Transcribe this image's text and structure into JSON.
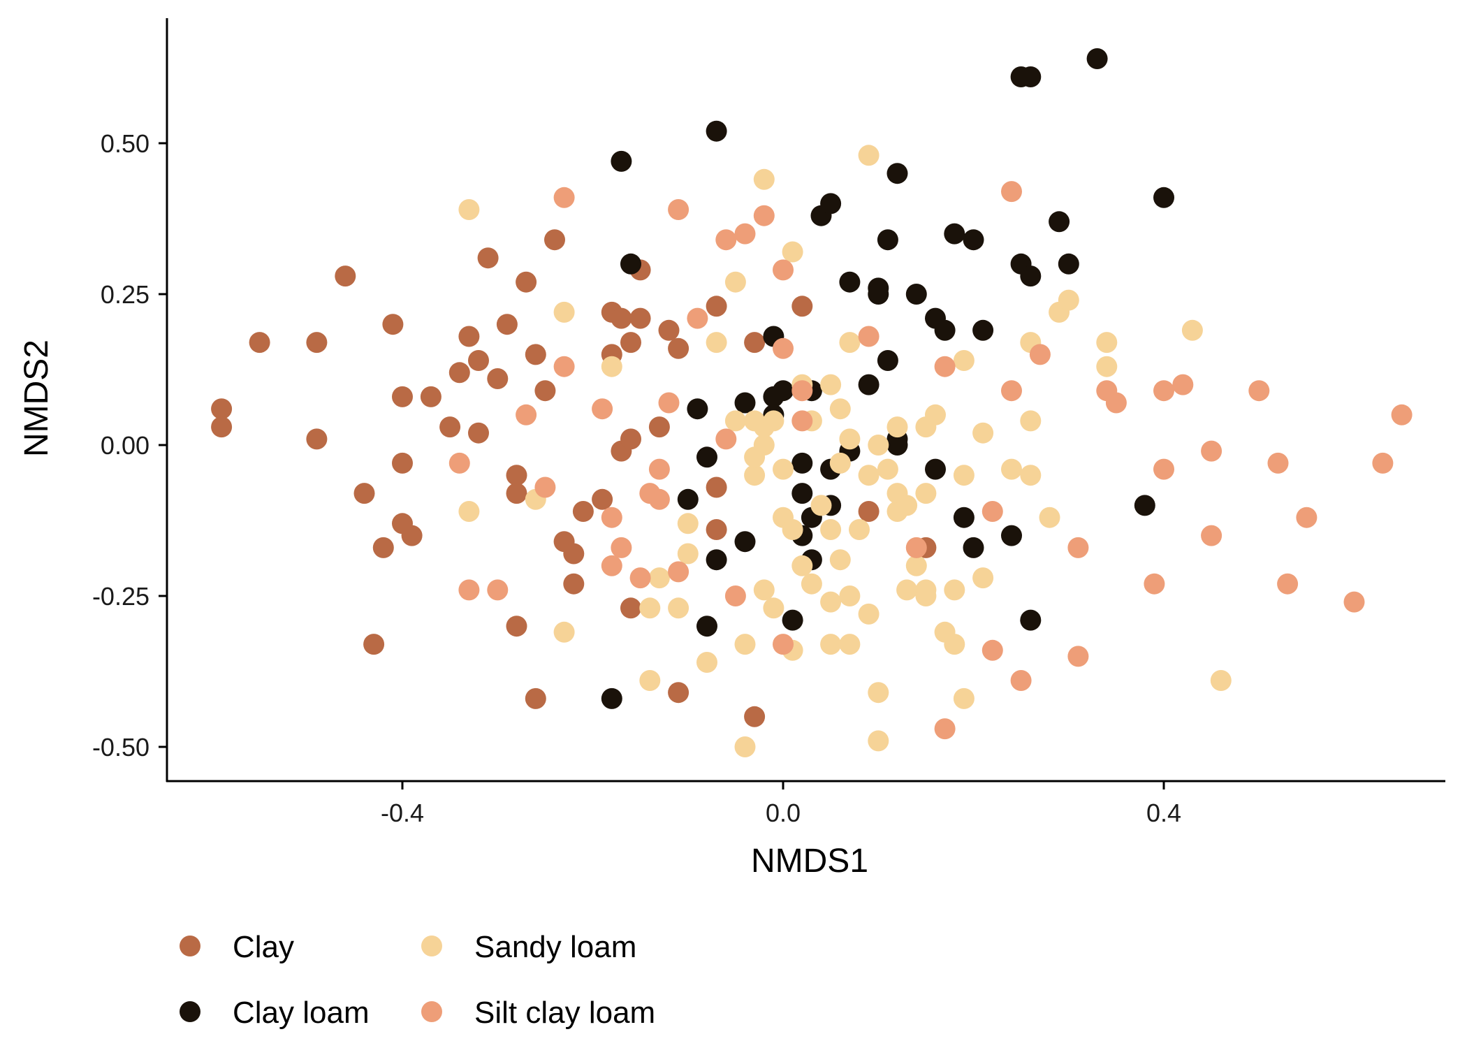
{
  "chart_data": {
    "type": "scatter",
    "xlabel": "NMDS1",
    "ylabel": "NMDS2",
    "xlim": [
      -0.65,
      0.73
    ],
    "ylim": [
      -0.56,
      0.69
    ],
    "x_ticks": [
      -0.4,
      0.0,
      0.4
    ],
    "x_tick_labels": [
      "-0.4",
      "0.0",
      "0.4"
    ],
    "y_ticks": [
      -0.5,
      -0.25,
      0.0,
      0.25,
      0.5
    ],
    "y_tick_labels": [
      "-0.50",
      "-0.25",
      "0.00",
      "0.25",
      "0.50"
    ],
    "grid": false,
    "legend_position": "bottom-left",
    "series": [
      {
        "name": "Clay",
        "color": "#B96A45",
        "points": [
          [
            -0.59,
            0.06
          ],
          [
            -0.59,
            0.03
          ],
          [
            -0.55,
            0.17
          ],
          [
            -0.49,
            0.17
          ],
          [
            -0.49,
            0.01
          ],
          [
            -0.46,
            0.28
          ],
          [
            -0.44,
            -0.08
          ],
          [
            -0.43,
            -0.33
          ],
          [
            -0.42,
            -0.17
          ],
          [
            -0.41,
            0.2
          ],
          [
            -0.4,
            0.08
          ],
          [
            -0.4,
            -0.03
          ],
          [
            -0.4,
            -0.13
          ],
          [
            -0.39,
            -0.15
          ],
          [
            -0.37,
            0.08
          ],
          [
            -0.35,
            0.03
          ],
          [
            -0.34,
            0.12
          ],
          [
            -0.33,
            0.18
          ],
          [
            -0.32,
            0.14
          ],
          [
            -0.32,
            0.02
          ],
          [
            -0.31,
            0.31
          ],
          [
            -0.3,
            0.11
          ],
          [
            -0.29,
            0.2
          ],
          [
            -0.28,
            -0.08
          ],
          [
            -0.28,
            -0.05
          ],
          [
            -0.28,
            -0.3
          ],
          [
            -0.27,
            0.27
          ],
          [
            -0.26,
            0.15
          ],
          [
            -0.26,
            -0.42
          ],
          [
            -0.25,
            0.09
          ],
          [
            -0.24,
            0.34
          ],
          [
            -0.23,
            -0.16
          ],
          [
            -0.22,
            -0.18
          ],
          [
            -0.22,
            -0.23
          ],
          [
            -0.21,
            -0.11
          ],
          [
            -0.19,
            -0.09
          ],
          [
            -0.18,
            0.15
          ],
          [
            -0.18,
            0.22
          ],
          [
            -0.17,
            0.21
          ],
          [
            -0.17,
            -0.01
          ],
          [
            -0.16,
            0.01
          ],
          [
            -0.16,
            0.17
          ],
          [
            -0.15,
            0.21
          ],
          [
            -0.15,
            0.29
          ],
          [
            -0.16,
            -0.27
          ],
          [
            -0.13,
            0.03
          ],
          [
            -0.12,
            0.19
          ],
          [
            -0.11,
            0.16
          ],
          [
            -0.11,
            -0.41
          ],
          [
            -0.07,
            0.23
          ],
          [
            -0.07,
            -0.07
          ],
          [
            -0.07,
            -0.14
          ],
          [
            -0.03,
            0.17
          ],
          [
            -0.03,
            -0.45
          ],
          [
            0.02,
            0.23
          ],
          [
            0.09,
            -0.11
          ],
          [
            0.15,
            -0.17
          ]
        ]
      },
      {
        "name": "Clay loam",
        "color": "#1A120A",
        "points": [
          [
            -0.17,
            0.47
          ],
          [
            -0.16,
            0.3
          ],
          [
            -0.18,
            -0.42
          ],
          [
            -0.1,
            -0.09
          ],
          [
            -0.09,
            0.06
          ],
          [
            -0.08,
            -0.02
          ],
          [
            -0.08,
            -0.3
          ],
          [
            -0.07,
            0.52
          ],
          [
            -0.07,
            -0.19
          ],
          [
            -0.04,
            -0.16
          ],
          [
            -0.04,
            0.07
          ],
          [
            -0.01,
            0.08
          ],
          [
            -0.01,
            0.18
          ],
          [
            -0.01,
            0.05
          ],
          [
            0.0,
            0.09
          ],
          [
            0.02,
            -0.03
          ],
          [
            0.02,
            -0.08
          ],
          [
            0.02,
            -0.15
          ],
          [
            0.03,
            -0.12
          ],
          [
            0.03,
            -0.19
          ],
          [
            0.01,
            -0.29
          ],
          [
            0.03,
            0.09
          ],
          [
            0.04,
            0.38
          ],
          [
            0.05,
            0.4
          ],
          [
            0.05,
            -0.04
          ],
          [
            0.05,
            -0.1
          ],
          [
            0.07,
            0.27
          ],
          [
            0.07,
            -0.01
          ],
          [
            0.09,
            0.1
          ],
          [
            0.1,
            0.26
          ],
          [
            0.1,
            0.25
          ],
          [
            0.11,
            0.34
          ],
          [
            0.11,
            0.14
          ],
          [
            0.12,
            0.45
          ],
          [
            0.12,
            0.01
          ],
          [
            0.12,
            0.0
          ],
          [
            0.14,
            0.25
          ],
          [
            0.16,
            0.21
          ],
          [
            0.16,
            -0.04
          ],
          [
            0.17,
            0.19
          ],
          [
            0.18,
            0.35
          ],
          [
            0.19,
            -0.12
          ],
          [
            0.2,
            0.34
          ],
          [
            0.2,
            -0.17
          ],
          [
            0.21,
            0.19
          ],
          [
            0.24,
            -0.15
          ],
          [
            0.25,
            0.3
          ],
          [
            0.25,
            0.61
          ],
          [
            0.26,
            0.61
          ],
          [
            0.26,
            0.28
          ],
          [
            0.26,
            -0.29
          ],
          [
            0.29,
            0.37
          ],
          [
            0.3,
            0.3
          ],
          [
            0.33,
            0.64
          ],
          [
            0.38,
            -0.1
          ],
          [
            0.4,
            0.41
          ]
        ]
      },
      {
        "name": "Sandy loam",
        "color": "#F6D397",
        "points": [
          [
            -0.33,
            0.39
          ],
          [
            -0.33,
            -0.11
          ],
          [
            -0.26,
            -0.09
          ],
          [
            -0.23,
            0.22
          ],
          [
            -0.23,
            -0.31
          ],
          [
            -0.18,
            0.13
          ],
          [
            -0.14,
            -0.27
          ],
          [
            -0.14,
            -0.39
          ],
          [
            -0.13,
            -0.22
          ],
          [
            -0.11,
            -0.27
          ],
          [
            -0.1,
            -0.13
          ],
          [
            -0.1,
            -0.18
          ],
          [
            -0.08,
            -0.36
          ],
          [
            -0.07,
            0.17
          ],
          [
            -0.05,
            0.04
          ],
          [
            -0.05,
            0.27
          ],
          [
            -0.04,
            -0.33
          ],
          [
            -0.03,
            -0.05
          ],
          [
            -0.03,
            0.04
          ],
          [
            -0.03,
            -0.02
          ],
          [
            -0.02,
            0.03
          ],
          [
            -0.02,
            0.0
          ],
          [
            -0.02,
            -0.24
          ],
          [
            -0.01,
            -0.27
          ],
          [
            -0.02,
            0.44
          ],
          [
            0.0,
            -0.04
          ],
          [
            0.0,
            -0.12
          ],
          [
            0.01,
            0.32
          ],
          [
            0.01,
            -0.14
          ],
          [
            0.01,
            -0.34
          ],
          [
            0.02,
            0.1
          ],
          [
            0.02,
            -0.2
          ],
          [
            0.03,
            0.04
          ],
          [
            0.03,
            -0.23
          ],
          [
            0.04,
            -0.1
          ],
          [
            0.05,
            0.1
          ],
          [
            0.05,
            -0.14
          ],
          [
            0.05,
            -0.33
          ],
          [
            0.05,
            -0.26
          ],
          [
            0.06,
            0.06
          ],
          [
            0.06,
            -0.19
          ],
          [
            0.06,
            -0.03
          ],
          [
            0.07,
            0.01
          ],
          [
            0.07,
            0.17
          ],
          [
            0.07,
            -0.25
          ],
          [
            0.07,
            -0.33
          ],
          [
            0.08,
            -0.14
          ],
          [
            0.09,
            -0.05
          ],
          [
            0.09,
            0.48
          ],
          [
            0.09,
            -0.28
          ],
          [
            0.1,
            0.0
          ],
          [
            0.1,
            -0.41
          ],
          [
            0.1,
            -0.49
          ],
          [
            0.11,
            -0.04
          ],
          [
            0.12,
            -0.11
          ],
          [
            0.12,
            -0.08
          ],
          [
            0.12,
            0.03
          ],
          [
            0.13,
            -0.24
          ],
          [
            0.13,
            -0.1
          ],
          [
            0.14,
            -0.2
          ],
          [
            0.15,
            0.03
          ],
          [
            0.15,
            -0.08
          ],
          [
            0.15,
            -0.25
          ],
          [
            0.15,
            -0.24
          ],
          [
            0.16,
            0.05
          ],
          [
            0.17,
            -0.31
          ],
          [
            0.18,
            -0.24
          ],
          [
            0.18,
            -0.33
          ],
          [
            0.19,
            -0.05
          ],
          [
            0.19,
            -0.42
          ],
          [
            0.19,
            0.14
          ],
          [
            0.21,
            0.02
          ],
          [
            0.21,
            -0.22
          ],
          [
            0.24,
            -0.04
          ],
          [
            0.26,
            0.04
          ],
          [
            0.26,
            -0.05
          ],
          [
            0.26,
            0.17
          ],
          [
            0.28,
            -0.12
          ],
          [
            0.29,
            0.22
          ],
          [
            0.3,
            0.24
          ],
          [
            0.34,
            0.17
          ],
          [
            0.34,
            0.13
          ],
          [
            0.43,
            0.19
          ],
          [
            0.46,
            -0.39
          ],
          [
            -0.01,
            0.04
          ],
          [
            -0.04,
            -0.5
          ]
        ]
      },
      {
        "name": "Silt clay loam",
        "color": "#EE9E78",
        "points": [
          [
            -0.34,
            -0.03
          ],
          [
            -0.33,
            -0.24
          ],
          [
            -0.3,
            -0.24
          ],
          [
            -0.27,
            0.05
          ],
          [
            -0.25,
            -0.07
          ],
          [
            -0.23,
            0.13
          ],
          [
            -0.23,
            0.41
          ],
          [
            -0.19,
            0.06
          ],
          [
            -0.18,
            -0.12
          ],
          [
            -0.17,
            -0.17
          ],
          [
            -0.18,
            -0.2
          ],
          [
            -0.15,
            -0.22
          ],
          [
            -0.14,
            -0.08
          ],
          [
            -0.13,
            -0.09
          ],
          [
            -0.13,
            -0.04
          ],
          [
            -0.12,
            0.07
          ],
          [
            -0.11,
            0.39
          ],
          [
            -0.11,
            -0.21
          ],
          [
            -0.09,
            0.21
          ],
          [
            -0.06,
            0.34
          ],
          [
            -0.06,
            0.01
          ],
          [
            -0.05,
            -0.25
          ],
          [
            -0.04,
            0.35
          ],
          [
            -0.02,
            0.38
          ],
          [
            0.0,
            0.16
          ],
          [
            0.0,
            0.29
          ],
          [
            0.0,
            -0.33
          ],
          [
            0.02,
            0.04
          ],
          [
            0.02,
            0.09
          ],
          [
            0.09,
            0.18
          ],
          [
            0.14,
            -0.17
          ],
          [
            0.17,
            0.13
          ],
          [
            0.22,
            -0.34
          ],
          [
            0.22,
            -0.11
          ],
          [
            0.24,
            0.42
          ],
          [
            0.24,
            0.09
          ],
          [
            0.25,
            -0.39
          ],
          [
            0.27,
            0.15
          ],
          [
            0.31,
            -0.35
          ],
          [
            0.31,
            -0.17
          ],
          [
            0.34,
            0.09
          ],
          [
            0.35,
            0.07
          ],
          [
            0.39,
            -0.23
          ],
          [
            0.4,
            0.09
          ],
          [
            0.4,
            -0.04
          ],
          [
            0.42,
            0.1
          ],
          [
            0.45,
            -0.01
          ],
          [
            0.45,
            -0.15
          ],
          [
            0.5,
            0.09
          ],
          [
            0.52,
            -0.03
          ],
          [
            0.53,
            -0.23
          ],
          [
            0.55,
            -0.12
          ],
          [
            0.6,
            -0.26
          ],
          [
            0.63,
            -0.03
          ],
          [
            0.65,
            0.05
          ],
          [
            0.17,
            -0.47
          ]
        ]
      }
    ]
  },
  "legend": {
    "items": [
      "Clay",
      "Clay loam",
      "Sandy loam",
      "Silt clay loam"
    ]
  }
}
